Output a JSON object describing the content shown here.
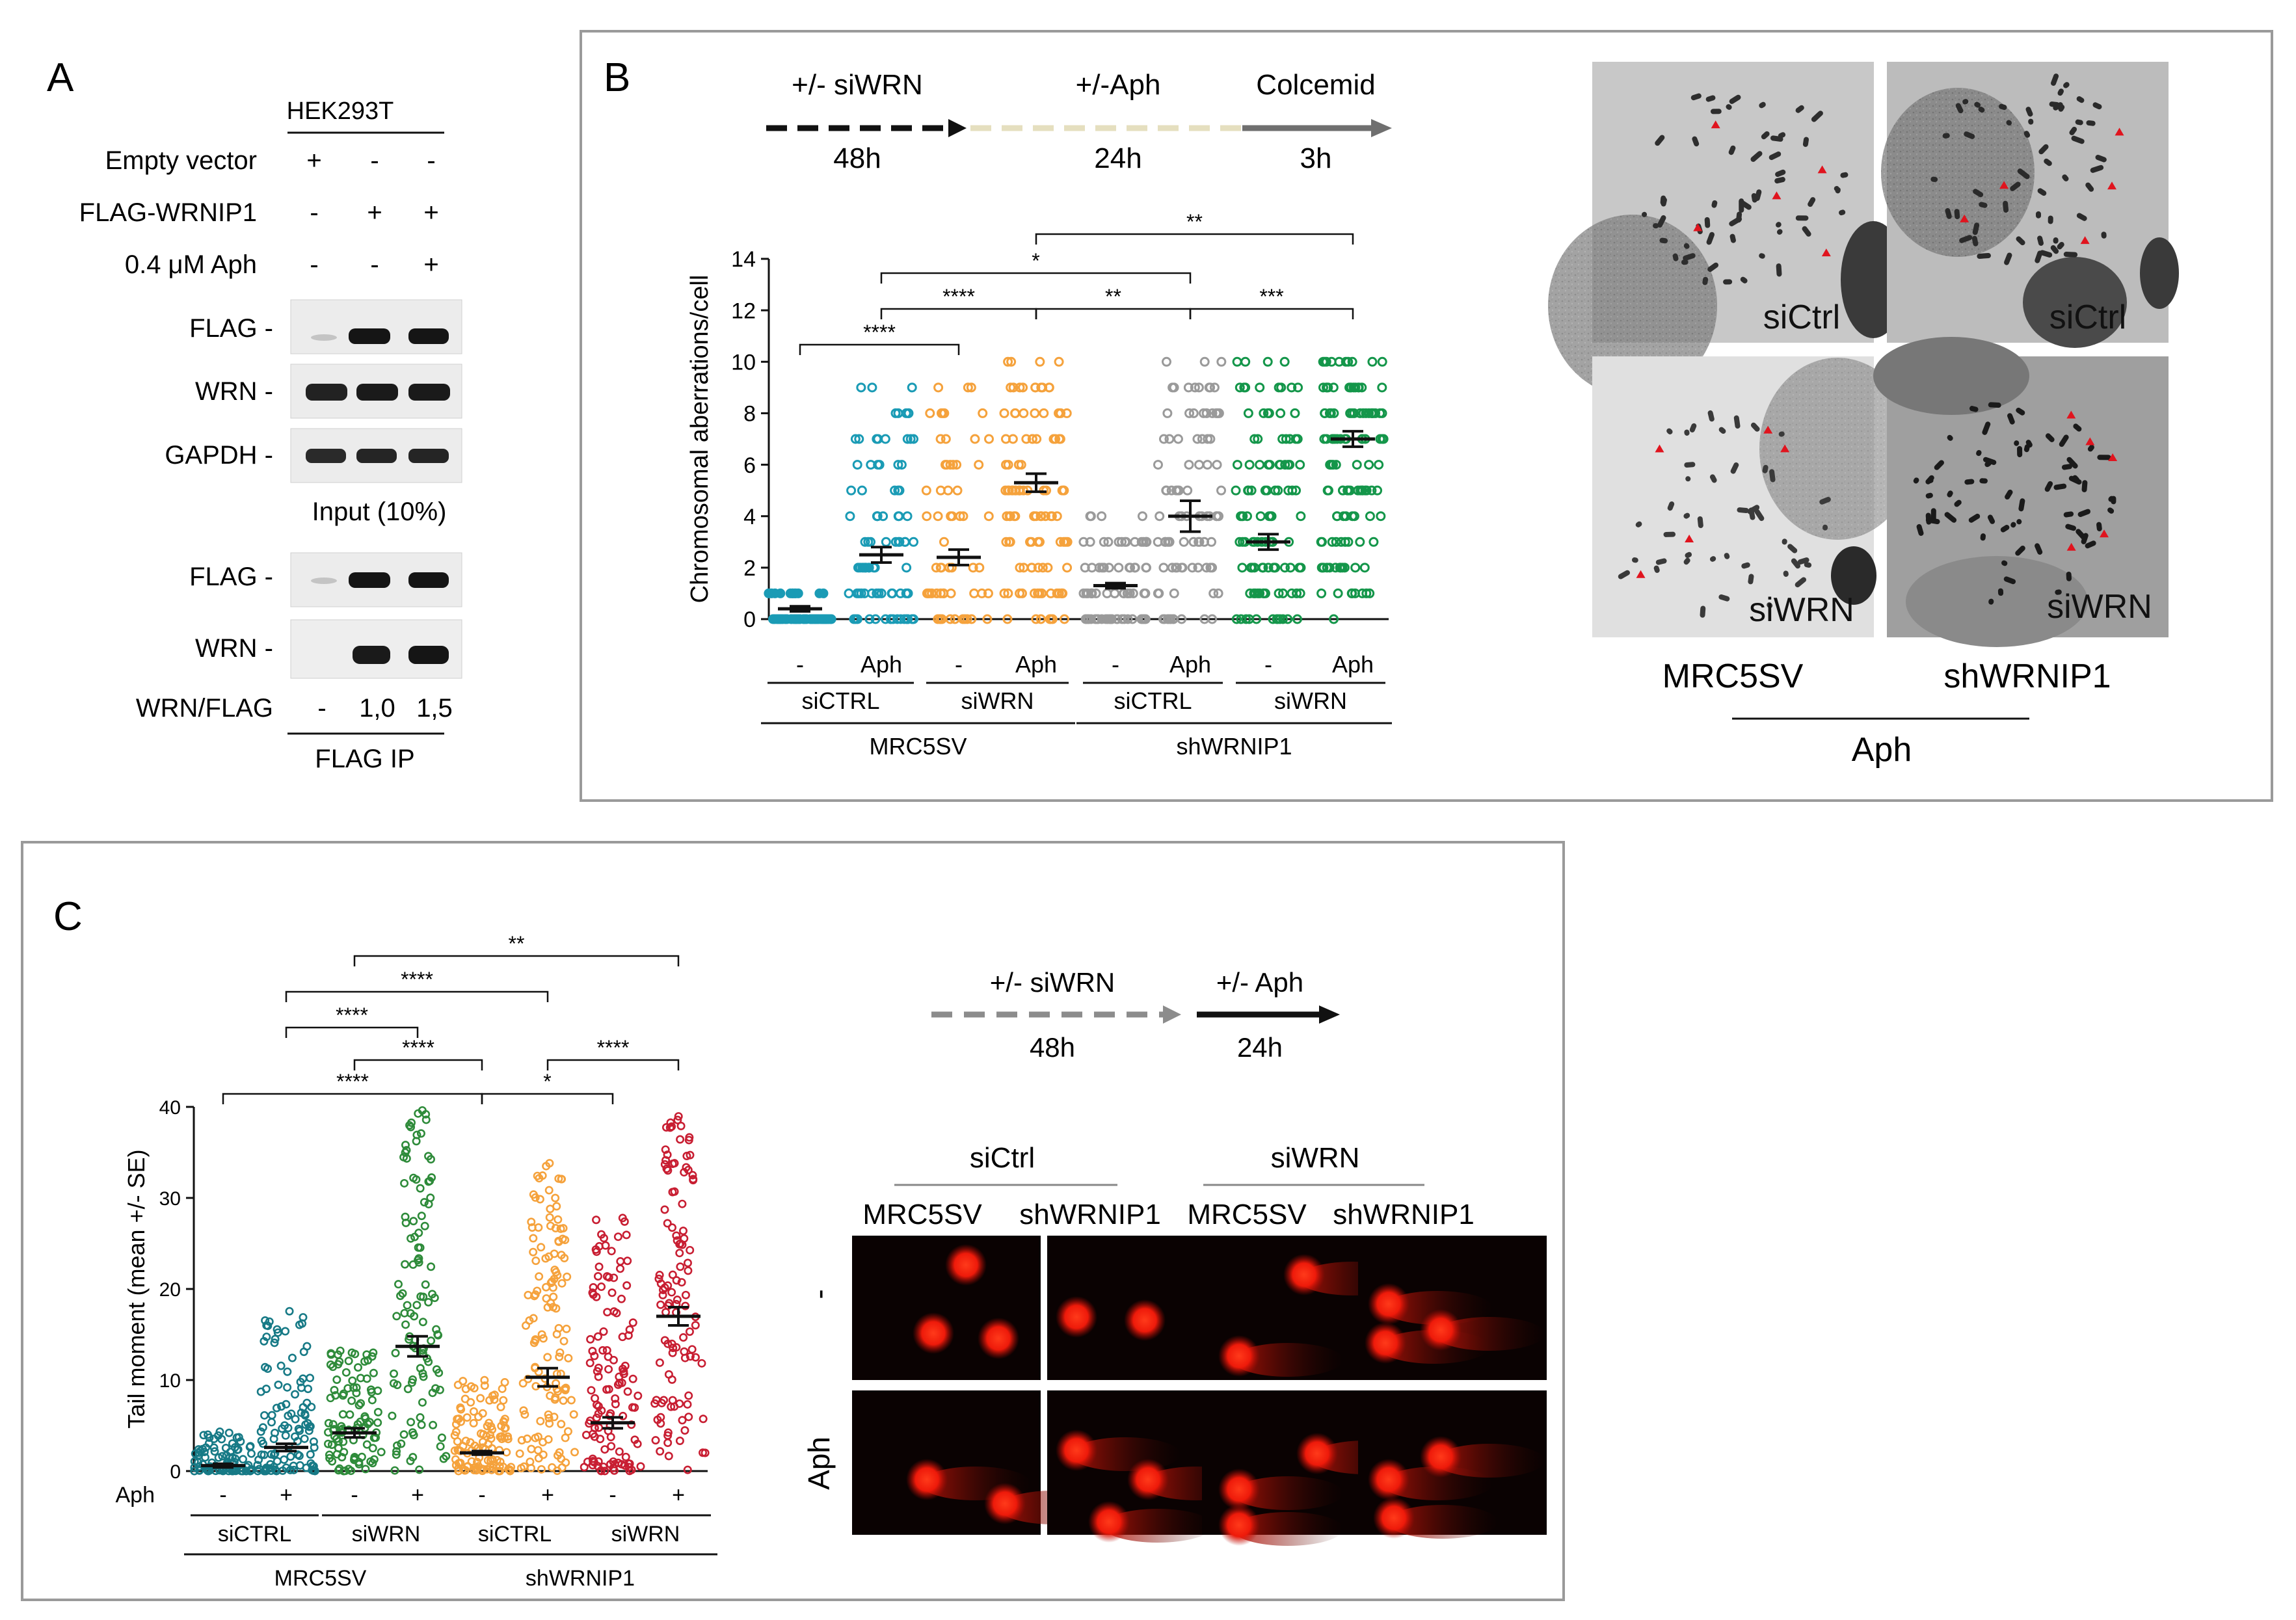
{
  "panels": {
    "a": {
      "letter": "A",
      "cell_line": "HEK293T",
      "conditions": [
        {
          "label": "Empty vector",
          "values": [
            "+",
            "-",
            "-"
          ]
        },
        {
          "label": "FLAG-WRNIP1",
          "values": [
            "-",
            "+",
            "+"
          ]
        },
        {
          "label": "0.4 μM Aph",
          "values": [
            "-",
            "-",
            "+"
          ]
        }
      ],
      "input_blots": [
        "FLAG -",
        "WRN -",
        "GAPDH -"
      ],
      "input_caption": "Input (10%)",
      "ip_blots": [
        "FLAG -",
        "WRN -"
      ],
      "ratio_label": "WRN/FLAG",
      "ratio_values": [
        "-",
        "1,0",
        "1,5"
      ],
      "ip_caption": "FLAG IP"
    },
    "b": {
      "letter": "B",
      "timeline": [
        {
          "top": "+/- siWRN",
          "bottom": "48h"
        },
        {
          "top": "+/-Aph",
          "bottom": "24h"
        },
        {
          "top": "Colcemid",
          "bottom": "3h"
        }
      ],
      "image_labels": [
        "siCtrl",
        "siCtrl",
        "siWRN",
        "siWRN"
      ],
      "image_cols": [
        "MRC5SV",
        "shWRNIP1"
      ],
      "image_group": "Aph"
    },
    "c": {
      "letter": "C",
      "timeline": [
        {
          "top": "+/- siWRN",
          "bottom": "48h"
        },
        {
          "top": "+/- Aph",
          "bottom": "24h"
        }
      ],
      "comet_groups": [
        "siCtrl",
        "siWRN"
      ],
      "comet_cols": [
        "MRC5SV",
        "shWRNIP1",
        "MRC5SV",
        "shWRNIP1"
      ],
      "comet_rows": [
        "-",
        "Aph"
      ]
    }
  },
  "colors": {
    "teal": "#1a9bb5",
    "orange": "#f5a23c",
    "gray": "#9a9a9a",
    "green": "#14964a",
    "darkteal": "#177a86",
    "darkgreen": "#2e8b3a",
    "red": "#c81e32"
  },
  "chart_data": [
    {
      "type": "scatter",
      "panel": "B",
      "ylabel": "Chromosomal aberrations/cell",
      "ylim": [
        0,
        14
      ],
      "yticks": [
        0,
        2,
        4,
        6,
        8,
        10,
        12,
        14
      ],
      "categories": [
        "-",
        "Aph",
        "-",
        "Aph",
        "-",
        "Aph",
        "-",
        "Aph"
      ],
      "sirna_groups": [
        "siCTRL",
        "siWRN",
        "siCTRL",
        "siWRN"
      ],
      "cell_groups": [
        "MRC5SV",
        "shWRNIP1"
      ],
      "series": [
        {
          "name": "MRC5SV siCTRL -",
          "mean": 0.4,
          "sem": 0.1
        },
        {
          "name": "MRC5SV siCTRL Aph",
          "mean": 2.5,
          "sem": 0.3
        },
        {
          "name": "MRC5SV siWRN -",
          "mean": 2.4,
          "sem": 0.3
        },
        {
          "name": "MRC5SV siWRN Aph",
          "mean": 5.3,
          "sem": 0.35
        },
        {
          "name": "shWRNIP1 siCTRL -",
          "mean": 1.3,
          "sem": 0.1
        },
        {
          "name": "shWRNIP1 siCTRL Aph",
          "mean": 4.0,
          "sem": 0.6
        },
        {
          "name": "shWRNIP1 siWRN -",
          "mean": 3.0,
          "sem": 0.3
        },
        {
          "name": "shWRNIP1 siWRN Aph",
          "mean": 7.0,
          "sem": 0.3
        }
      ],
      "significance": [
        {
          "groups": [
            0,
            2
          ],
          "label": "****"
        },
        {
          "groups": [
            1,
            5
          ],
          "label": "*"
        },
        {
          "groups": [
            3,
            7
          ],
          "label": "**"
        },
        {
          "groups": [
            1,
            3
          ],
          "label": "****"
        },
        {
          "groups": [
            3,
            5
          ],
          "label": "**"
        },
        {
          "groups": [
            5,
            7
          ],
          "label": "***"
        }
      ]
    },
    {
      "type": "scatter",
      "panel": "C",
      "ylabel": "Tail moment (mean +/- SE)",
      "ylim": [
        0,
        40
      ],
      "yticks": [
        0,
        10,
        20,
        30,
        40
      ],
      "xrow_label": "Aph",
      "categories": [
        "-",
        "+",
        "-",
        "+",
        "-",
        "+",
        "-",
        "+"
      ],
      "sirna_groups": [
        "siCTRL",
        "siWRN",
        "siCTRL",
        "siWRN"
      ],
      "cell_groups": [
        "MRC5SV",
        "shWRNIP1"
      ],
      "series": [
        {
          "name": "MRC5SV siCTRL -",
          "mean": 0.6,
          "sem": 0.2
        },
        {
          "name": "MRC5SV siCTRL +",
          "mean": 2.6,
          "sem": 0.4
        },
        {
          "name": "MRC5SV siWRN -",
          "mean": 4.2,
          "sem": 0.5
        },
        {
          "name": "MRC5SV siWRN +",
          "mean": 13.7,
          "sem": 1.1
        },
        {
          "name": "shWRNIP1 siCTRL -",
          "mean": 2.0,
          "sem": 0.2
        },
        {
          "name": "shWRNIP1 siCTRL +",
          "mean": 10.3,
          "sem": 1.0
        },
        {
          "name": "shWRNIP1 siWRN -",
          "mean": 5.3,
          "sem": 0.6
        },
        {
          "name": "shWRNIP1 siWRN +",
          "mean": 17.0,
          "sem": 1.0
        }
      ],
      "significance": [
        {
          "groups": [
            2,
            7
          ],
          "label": "**"
        },
        {
          "groups": [
            1,
            5
          ],
          "label": "****"
        },
        {
          "groups": [
            1,
            3
          ],
          "label": "****"
        },
        {
          "groups": [
            2,
            4
          ],
          "label": "****"
        },
        {
          "groups": [
            5,
            7
          ],
          "label": "****"
        },
        {
          "groups": [
            0,
            4
          ],
          "label": "****"
        },
        {
          "groups": [
            4,
            6
          ],
          "label": "*"
        }
      ]
    }
  ]
}
